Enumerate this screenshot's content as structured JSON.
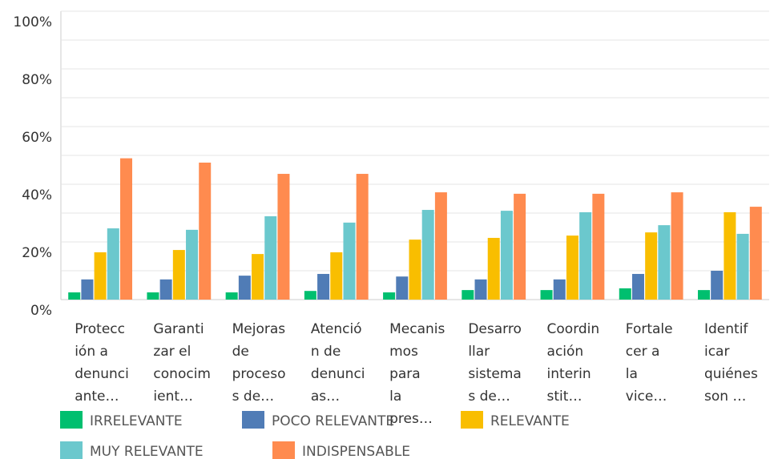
{
  "chart_data": {
    "type": "bar",
    "categories": [
      "Protecc\nión a\ndenunci\nante…",
      "Garanti\nzar el\nconocim\nient…",
      "Mejoras\nde\nproceso\ns de…",
      "Atenció\nn de\ndenunci\nas…",
      "Mecanis\nmos\npara\nla\npres…",
      "Desarro\nllar\nsistema\ns de…",
      "Coordin\nación\ninterin\nstit…",
      "Fortale\ncer a\nla\nvice…",
      "Identif\nicar\nquiénes\nson …"
    ],
    "series": [
      {
        "name": "IRRELEVANTE",
        "color": "#00bf6f",
        "values": [
          2.5,
          2.5,
          2.5,
          3,
          2.5,
          3.3,
          3.3,
          3.9,
          3.3
        ]
      },
      {
        "name": "POCO RELEVANTE",
        "color": "#507cb6",
        "values": [
          7,
          7,
          8.3,
          8.9,
          8,
          7,
          7,
          8.9,
          10
        ]
      },
      {
        "name": "RELEVANTE",
        "color": "#f9be00",
        "values": [
          16.4,
          17.2,
          15.8,
          16.4,
          20.8,
          21.4,
          22.2,
          23.3,
          30.3
        ]
      },
      {
        "name": "MUY RELEVANTE",
        "color": "#6bc8cd",
        "values": [
          24.7,
          24.2,
          28.9,
          26.7,
          31.1,
          30.8,
          30.3,
          25.8,
          22.8
        ]
      },
      {
        "name": "INDISPENSABLE",
        "color": "#ff8b4f",
        "values": [
          49,
          47.5,
          43.6,
          43.6,
          37.2,
          36.7,
          36.7,
          37.2,
          32.2
        ]
      }
    ],
    "ylim": [
      0,
      100
    ],
    "yticks": [
      {
        "value": 0,
        "label": "0%"
      },
      {
        "value": 20,
        "label": "20%"
      },
      {
        "value": 40,
        "label": "40%"
      },
      {
        "value": 60,
        "label": "60%"
      },
      {
        "value": 80,
        "label": "80%"
      },
      {
        "value": 100,
        "label": "100%"
      }
    ],
    "minor_yticks": [
      10,
      30,
      50,
      70,
      90
    ],
    "grid": true,
    "legend": "bottom"
  }
}
